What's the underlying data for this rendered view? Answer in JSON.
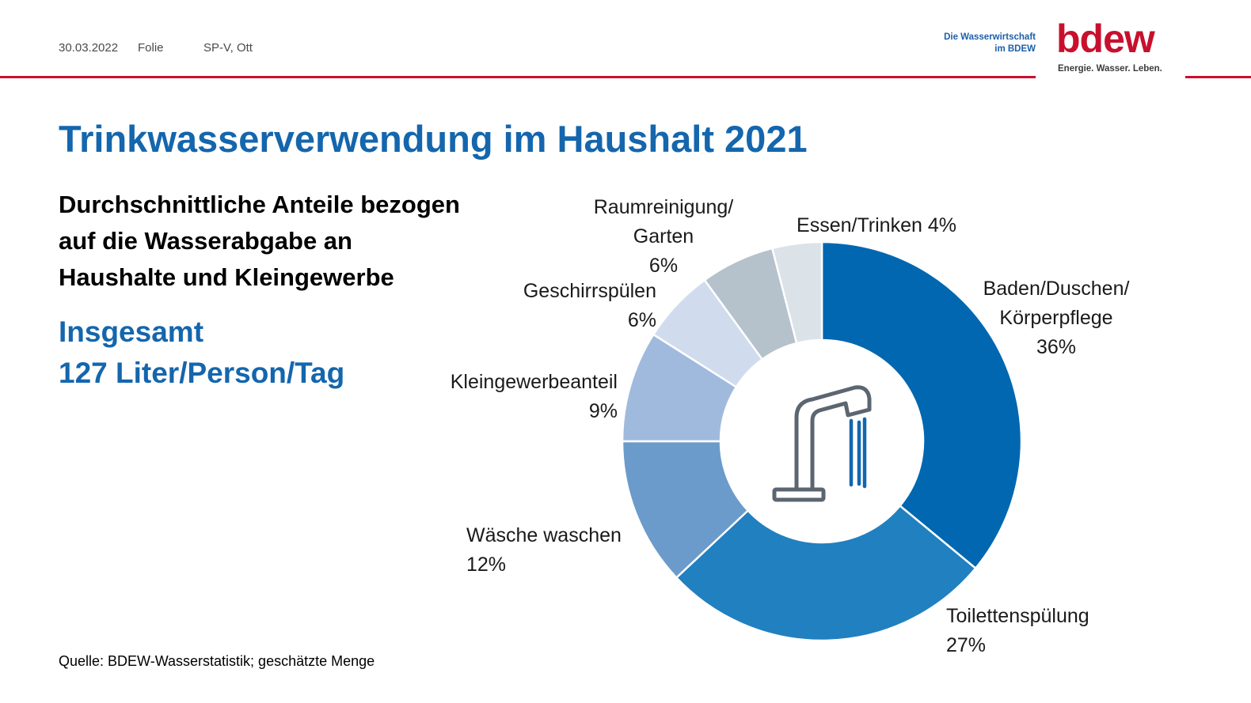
{
  "header": {
    "date": "30.03.2022",
    "folie": "Folie",
    "author": "SP-V, Ott"
  },
  "logo": {
    "subline1": "Die Wasserwirtschaft",
    "subline2": "im BDEW",
    "word": "bdew",
    "slogan": "Energie. Wasser. Leben."
  },
  "title": "Trinkwasserverwendung im Haushalt 2021",
  "subtitle": {
    "line1": "Durchschnittliche Anteile bezogen",
    "line2": "auf die Wasserabgabe an",
    "line3": "Haushalte und Kleingewerbe"
  },
  "total": {
    "line1": "Insgesamt",
    "line2": "127 Liter/Person/Tag"
  },
  "source": "Quelle: BDEW-Wasserstatistik; geschätzte Menge",
  "center_icon": "water-tap-icon",
  "chart_data": {
    "type": "pie",
    "style": "donut",
    "unit": "%",
    "slices": [
      {
        "key": "baden",
        "label": [
          "Baden/Duschen/",
          "Körperpflege",
          "36%"
        ],
        "value": 36,
        "color": "#0067b0"
      },
      {
        "key": "toilette",
        "label": [
          "Toilettenspülung",
          "27%"
        ],
        "value": 27,
        "color": "#2180bf"
      },
      {
        "key": "waesche",
        "label": [
          "Wäsche waschen",
          "12%"
        ],
        "value": 12,
        "color": "#6b9bcb"
      },
      {
        "key": "kleingewerbe",
        "label": [
          "Kleingewerbeanteil",
          "9%"
        ],
        "value": 9,
        "color": "#a0badd"
      },
      {
        "key": "geschirr",
        "label": [
          "Geschirrspülen",
          "6%"
        ],
        "value": 6,
        "color": "#d0dcee"
      },
      {
        "key": "raum",
        "label": [
          "Raumreinigung/",
          "Garten",
          "6%"
        ],
        "value": 6,
        "color": "#b5c1cb"
      },
      {
        "key": "essen",
        "label": [
          "Essen/Trinken 4%"
        ],
        "value": 4,
        "color": "#dbe2e8"
      }
    ]
  }
}
